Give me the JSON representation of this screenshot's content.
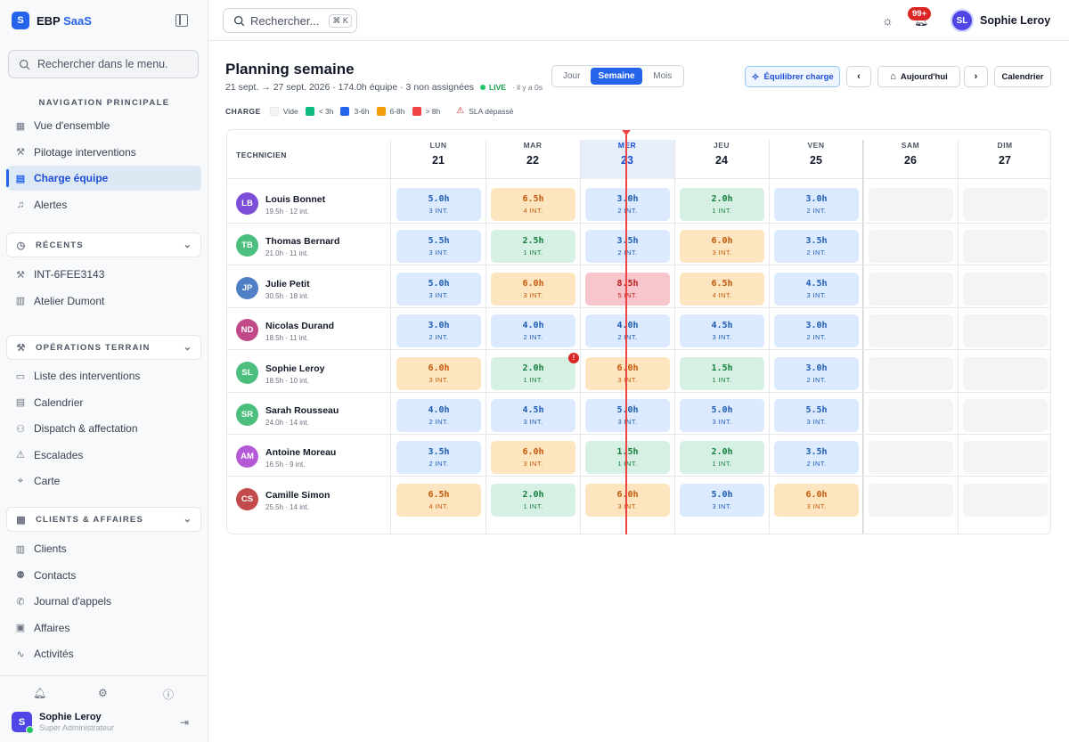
{
  "brand": {
    "logo": "S",
    "name": "EBP",
    "suffix": "SaaS"
  },
  "sidebar": {
    "search_placeholder": "Rechercher dans le menu.",
    "nav_title": "NAVIGATION PRINCIPALE",
    "main_items": [
      {
        "label": "Vue d'ensemble",
        "icon": "grid-icon"
      },
      {
        "label": "Pilotage interventions",
        "icon": "wrench-icon"
      },
      {
        "label": "Charge équipe",
        "icon": "calendar-icon",
        "active": true
      },
      {
        "label": "Alertes",
        "icon": "bell-icon"
      }
    ],
    "recents_title": "RÉCENTS",
    "recent_items": [
      {
        "label": "INT-6FEE3143",
        "icon": "wrench-icon"
      },
      {
        "label": "Atelier Dumont",
        "icon": "building-icon"
      }
    ],
    "ops_title": "OPÉRATIONS TERRAIN",
    "ops_items": [
      {
        "label": "Liste des interventions",
        "icon": "clipboard-icon"
      },
      {
        "label": "Calendrier",
        "icon": "calendar-icon"
      },
      {
        "label": "Dispatch & affectation",
        "icon": "user-plus-icon"
      },
      {
        "label": "Escalades",
        "icon": "warning-icon"
      },
      {
        "label": "Carte",
        "icon": "map-pin-icon"
      }
    ],
    "clients_title": "CLIENTS & AFFAIRES",
    "clients_items": [
      {
        "label": "Clients",
        "icon": "building-icon"
      },
      {
        "label": "Contacts",
        "icon": "users-icon"
      },
      {
        "label": "Journal d'appels",
        "icon": "phone-icon"
      },
      {
        "label": "Affaires",
        "icon": "briefcase-icon"
      },
      {
        "label": "Activités",
        "icon": "activity-icon"
      }
    ],
    "user": {
      "initial": "S",
      "name": "Sophie Leroy",
      "role": "Super Administrateur"
    }
  },
  "topbar": {
    "search_placeholder": "Rechercher...",
    "shortcut": "⌘ K",
    "notif_count": "99+",
    "user_initials": "SL",
    "user_name": "Sophie Leroy"
  },
  "page": {
    "title": "Planning semaine",
    "subtitle": "21 sept. → 27 sept. 2026 · 174.0h équipe · 3 non assignées",
    "live": "LIVE",
    "live_ago": "· il y a 0s"
  },
  "view_modes": [
    "Jour",
    "Semaine",
    "Mois"
  ],
  "actions": {
    "balance": "Équilibrer charge",
    "today": "Aujourd'hui",
    "calendar": "Calendrier"
  },
  "legend": {
    "title": "CHARGE",
    "items": [
      {
        "label": "Vide",
        "color": "#f3f4f6"
      },
      {
        "label": "< 3h",
        "color": "#10b981"
      },
      {
        "label": "3-6h",
        "color": "#2563eb"
      },
      {
        "label": "6-8h",
        "color": "#f59e0b"
      },
      {
        "label": "> 8h",
        "color": "#ef4444"
      }
    ],
    "sla": "SLA dépassé"
  },
  "table": {
    "tech_header": "TECHNICIEN",
    "days": [
      {
        "name": "LUN",
        "num": "21"
      },
      {
        "name": "MAR",
        "num": "22"
      },
      {
        "name": "MER",
        "num": "23",
        "today": true
      },
      {
        "name": "JEU",
        "num": "24"
      },
      {
        "name": "VEN",
        "num": "25"
      },
      {
        "name": "SAM",
        "num": "26"
      },
      {
        "name": "DIM",
        "num": "27"
      }
    ],
    "rows": [
      {
        "initials": "LB",
        "color": "#7c4dd6",
        "name": "Louis Bonnet",
        "stats": "19.5h · 12 int.",
        "cells": [
          {
            "h": "5.0h",
            "n": "3 INT."
          },
          {
            "h": "6.5h",
            "n": "4 INT."
          },
          {
            "h": "3.0h",
            "n": "2 INT."
          },
          {
            "h": "2.0h",
            "n": "1 INT."
          },
          {
            "h": "3.0h",
            "n": "2 INT."
          },
          null,
          null
        ]
      },
      {
        "initials": "TB",
        "color": "#4cbf7f",
        "name": "Thomas Bernard",
        "stats": "21.0h · 11 int.",
        "cells": [
          {
            "h": "5.5h",
            "n": "3 INT."
          },
          {
            "h": "2.5h",
            "n": "1 INT."
          },
          {
            "h": "3.5h",
            "n": "2 INT."
          },
          {
            "h": "6.0h",
            "n": "3 INT."
          },
          {
            "h": "3.5h",
            "n": "2 INT."
          },
          null,
          null
        ]
      },
      {
        "initials": "JP",
        "color": "#4f7fc4",
        "name": "Julie Petit",
        "stats": "30.5h · 18 int.",
        "cells": [
          {
            "h": "5.0h",
            "n": "3 INT."
          },
          {
            "h": "6.0h",
            "n": "3 INT."
          },
          {
            "h": "8.5h",
            "n": "5 INT."
          },
          {
            "h": "6.5h",
            "n": "4 INT."
          },
          {
            "h": "4.5h",
            "n": "3 INT."
          },
          null,
          null
        ]
      },
      {
        "initials": "ND",
        "color": "#c04a88",
        "name": "Nicolas Durand",
        "stats": "18.5h · 11 int.",
        "cells": [
          {
            "h": "3.0h",
            "n": "2 INT."
          },
          {
            "h": "4.0h",
            "n": "2 INT."
          },
          {
            "h": "4.0h",
            "n": "2 INT."
          },
          {
            "h": "4.5h",
            "n": "3 INT."
          },
          {
            "h": "3.0h",
            "n": "2 INT."
          },
          null,
          null
        ]
      },
      {
        "initials": "SL",
        "color": "#4cbf7f",
        "name": "Sophie Leroy",
        "stats": "18.5h · 10 int.",
        "cells": [
          {
            "h": "6.0h",
            "n": "3 INT."
          },
          {
            "h": "2.0h",
            "n": "1 INT.",
            "sla": true
          },
          {
            "h": "6.0h",
            "n": "3 INT."
          },
          {
            "h": "1.5h",
            "n": "1 INT."
          },
          {
            "h": "3.0h",
            "n": "2 INT."
          },
          null,
          null
        ]
      },
      {
        "initials": "SR",
        "color": "#4cbf7f",
        "name": "Sarah Rousseau",
        "stats": "24.0h · 14 int.",
        "cells": [
          {
            "h": "4.0h",
            "n": "2 INT."
          },
          {
            "h": "4.5h",
            "n": "3 INT."
          },
          {
            "h": "5.0h",
            "n": "3 INT."
          },
          {
            "h": "5.0h",
            "n": "3 INT."
          },
          {
            "h": "5.5h",
            "n": "3 INT."
          },
          null,
          null
        ]
      },
      {
        "initials": "AM",
        "color": "#b45ad6",
        "name": "Antoine Moreau",
        "stats": "16.5h · 9 int.",
        "cells": [
          {
            "h": "3.5h",
            "n": "2 INT."
          },
          {
            "h": "6.0h",
            "n": "3 INT."
          },
          {
            "h": "1.5h",
            "n": "1 INT."
          },
          {
            "h": "2.0h",
            "n": "1 INT."
          },
          {
            "h": "3.5h",
            "n": "2 INT."
          },
          null,
          null
        ]
      },
      {
        "initials": "CS",
        "color": "#c24a4a",
        "name": "Camille Simon",
        "stats": "25.5h · 14 int.",
        "cells": [
          {
            "h": "6.5h",
            "n": "4 INT."
          },
          {
            "h": "2.0h",
            "n": "1 INT."
          },
          {
            "h": "6.0h",
            "n": "3 INT."
          },
          {
            "h": "5.0h",
            "n": "3 INT."
          },
          {
            "h": "6.0h",
            "n": "3 INT."
          },
          null,
          null
        ]
      }
    ]
  }
}
